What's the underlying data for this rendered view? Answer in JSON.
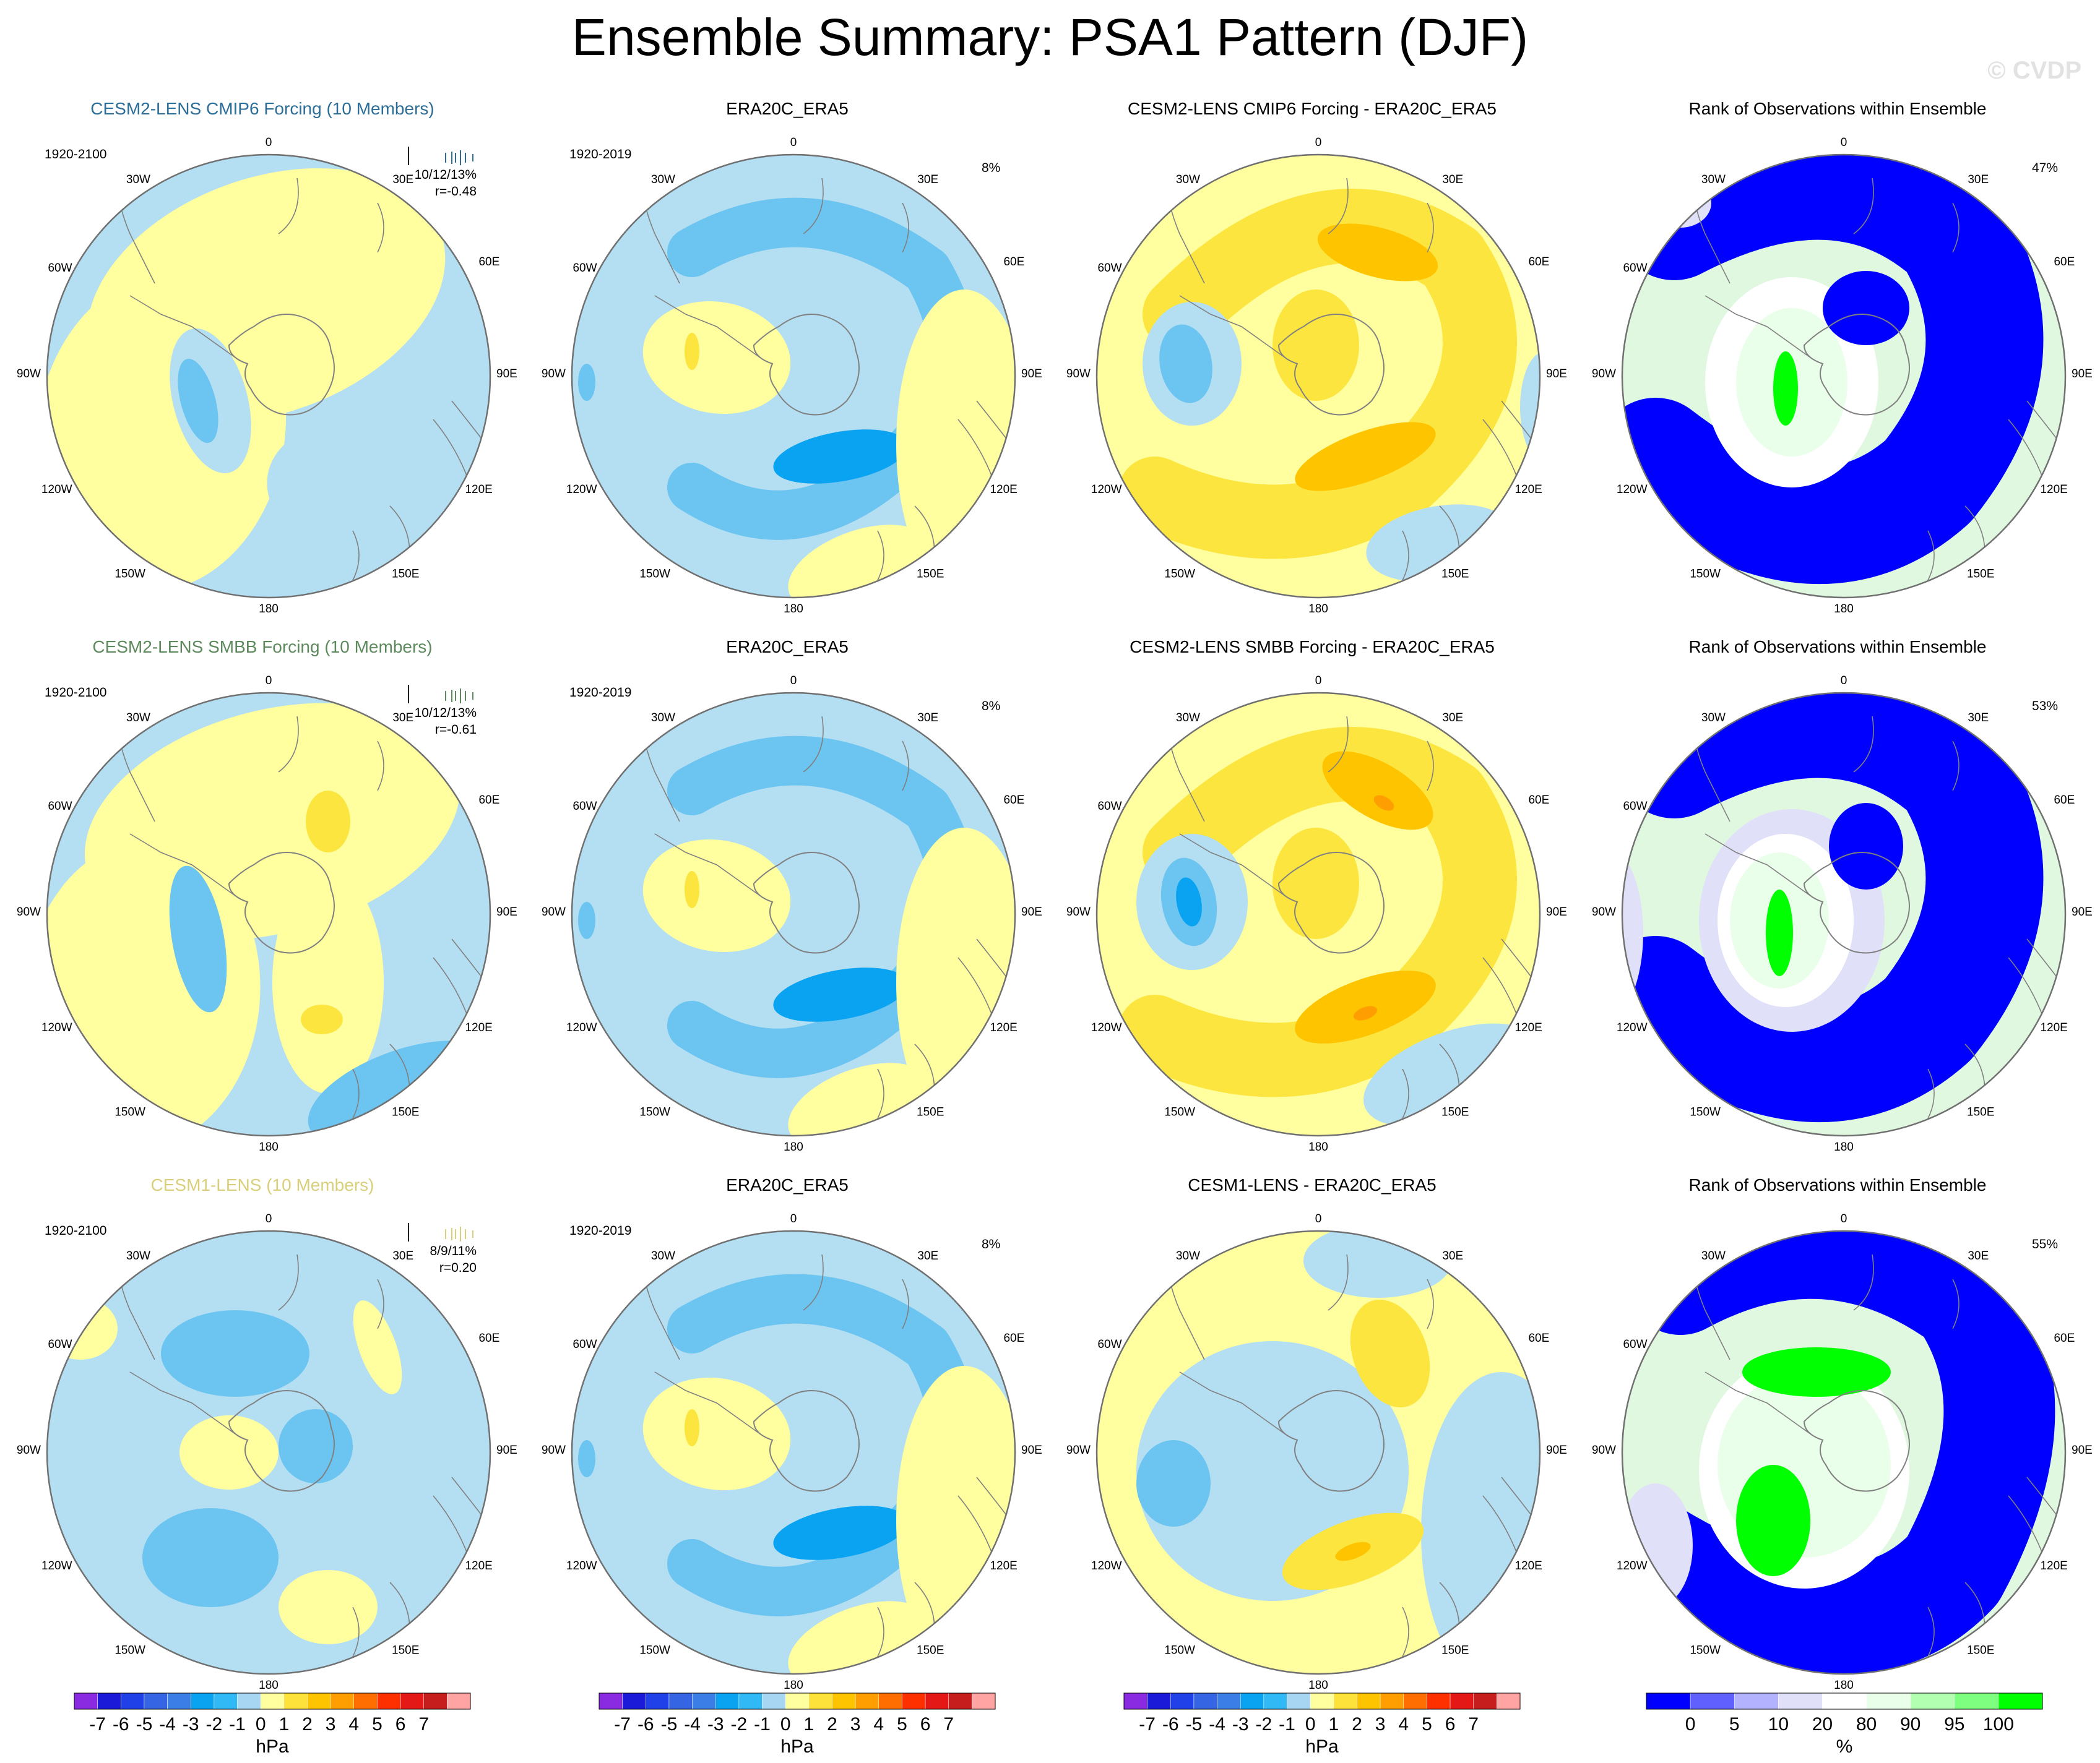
{
  "title": "Ensemble Summary: PSA1 Pattern (DJF)",
  "watermark": "© CVDP",
  "colors": {
    "row1_title": "#2d6e98",
    "row2_title": "#5c8a5c",
    "row3_title": "#d9cf7a"
  },
  "longitude_labels": [
    "0",
    "30E",
    "60E",
    "90E",
    "120E",
    "150E",
    "180",
    "150W",
    "120W",
    "90W",
    "60W",
    "30W"
  ],
  "rows": [
    {
      "model": {
        "title": "CESM2-LENS CMIP6 Forcing (10 Members)",
        "period": "1920-2100",
        "stats": "10/12/13%",
        "correlation": "r=-0.48",
        "title_color": "#2d6e98",
        "colorbar_legend": false
      },
      "observation": {
        "title": "ERA20C_ERA5",
        "period": "1920-2019",
        "percent": "8%"
      },
      "difference": {
        "title": "CESM2-LENS CMIP6 Forcing - ERA20C_ERA5"
      },
      "rank": {
        "title": "Rank of Observations within Ensemble",
        "percent": "47%"
      }
    },
    {
      "model": {
        "title": "CESM2-LENS SMBB Forcing (10 Members)",
        "period": "1920-2100",
        "stats": "10/12/13%",
        "correlation": "r=-0.61",
        "title_color": "#5c8a5c"
      },
      "observation": {
        "title": "ERA20C_ERA5",
        "period": "1920-2019",
        "percent": "8%"
      },
      "difference": {
        "title": "CESM2-LENS SMBB Forcing - ERA20C_ERA5"
      },
      "rank": {
        "title": "Rank of Observations within Ensemble",
        "percent": "53%"
      }
    },
    {
      "model": {
        "title": "CESM1-LENS (10 Members)",
        "period": "1920-2100",
        "stats": "8/9/11%",
        "correlation": "r=0.20",
        "title_color": "#d9cf7a"
      },
      "observation": {
        "title": "ERA20C_ERA5",
        "period": "1920-2019",
        "percent": "8%"
      },
      "difference": {
        "title": "CESM1-LENS - ERA20C_ERA5"
      },
      "rank": {
        "title": "Rank of Observations within Ensemble",
        "percent": "55%"
      }
    }
  ],
  "colorbars": {
    "hpa": {
      "unit": "hPa",
      "ticks": [
        "-7",
        "-6",
        "-5",
        "-4",
        "-3",
        "-2",
        "-1",
        "0",
        "1",
        "2",
        "3",
        "4",
        "5",
        "6",
        "7"
      ],
      "colors": [
        "#8a2be2",
        "#1a1ad8",
        "#2040e8",
        "#3565e3",
        "#3b7fe6",
        "#0aa3f2",
        "#31b9f5",
        "#a6d6f2",
        "#ffff9f",
        "#fee23c",
        "#ffc400",
        "#ff9e00",
        "#ff6e00",
        "#ff3000",
        "#e51818",
        "#c61d1d",
        "#ffa3a3"
      ]
    },
    "percent": {
      "unit": "%",
      "ticks": [
        "0",
        "5",
        "10",
        "20",
        "80",
        "90",
        "95",
        "100"
      ],
      "colors": [
        "#0000ff",
        "#6060ff",
        "#b2b2ff",
        "#e0e0f8",
        "#ffffff",
        "#eaffea",
        "#b2ffb2",
        "#7fff7f",
        "#00ff00"
      ]
    }
  },
  "chart_data": [
    {
      "type": "heatmap",
      "projection": "south-polar-stereographic",
      "title": "CESM2-LENS CMIP6 Forcing (10 Members)",
      "variable": "PSA1 pattern sea level pressure",
      "unit": "hPa",
      "levels": [
        -7,
        -6,
        -5,
        -4,
        -3,
        -2,
        -1,
        0,
        1,
        2,
        3,
        4,
        5,
        6,
        7
      ]
    },
    {
      "type": "heatmap",
      "projection": "south-polar-stereographic",
      "title": "Rank of Observations within Ensemble",
      "unit": "%",
      "levels": [
        0,
        5,
        10,
        20,
        80,
        90,
        95,
        100
      ],
      "values": [
        "47%",
        "53%",
        "55%"
      ]
    }
  ]
}
